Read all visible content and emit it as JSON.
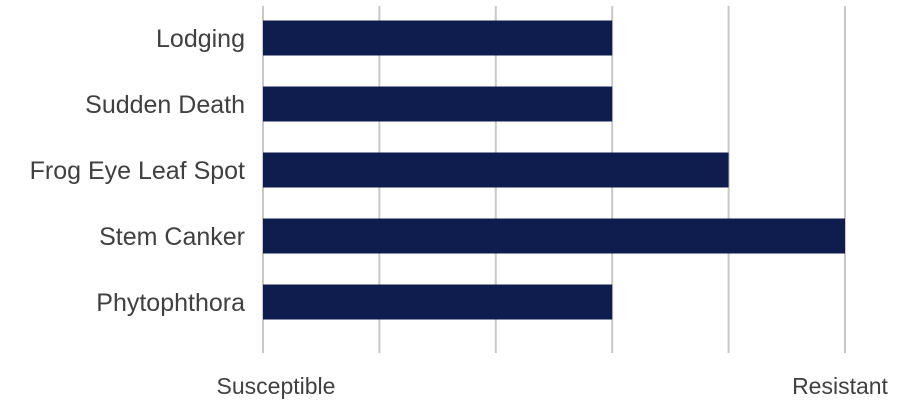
{
  "chart_data": {
    "type": "bar",
    "orientation": "horizontal",
    "categories": [
      "Lodging",
      "Sudden Death",
      "Frog Eye Leaf Spot",
      "Stem Canker",
      "Phytophthora"
    ],
    "values": [
      6,
      6,
      8,
      10,
      6
    ],
    "xlim": [
      0,
      10
    ],
    "grid": true,
    "grid_step": 2,
    "x_end_labels": {
      "low": "Susceptible",
      "high": "Resistant"
    },
    "legend": "none",
    "bar_color": "#0e1d4e"
  }
}
